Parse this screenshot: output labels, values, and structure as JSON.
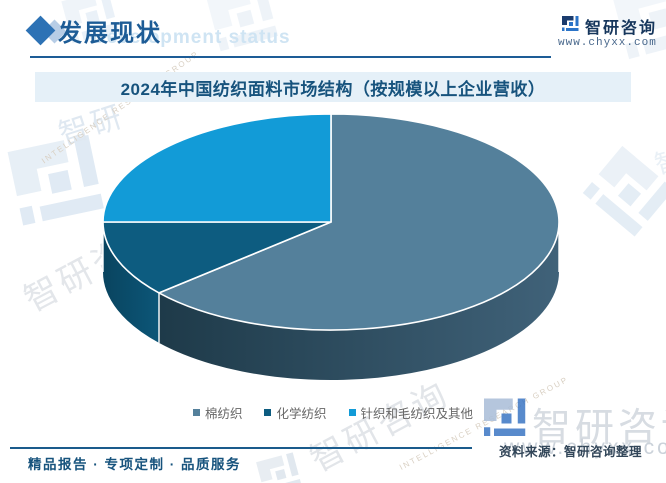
{
  "header": {
    "section_title": "发展现状",
    "logo_text": "智研咨询",
    "logo_site": "www.chyxx.com"
  },
  "chart_data": {
    "type": "pie",
    "projection": "3d",
    "title": "2024年中国纺织面料市场结构（按规模以上企业营收）",
    "labels": [
      "棉纺织",
      "化学纺织",
      "针织和毛纺织及其他"
    ],
    "values": [
      63.6,
      11.4,
      25.0
    ],
    "unit": "%",
    "start_angle": "12-oclock",
    "direction": "clockwise",
    "colors": [
      "#54809B",
      "#0D5C80",
      "#129BD7"
    ],
    "side_colors": [
      [
        "#1E3A49",
        "#406279"
      ],
      [
        "#09445F",
        "#0C5678"
      ],
      [
        "#0A6FA0",
        "#0A6FA0"
      ]
    ],
    "legend_position": "bottom",
    "data_labels_shown": false
  },
  "footer": {
    "slogan": "精品报告 · 专项定制 · 品质服务",
    "source": "资料来源：智研咨询整理"
  },
  "watermarks": {
    "header_en": "Development status",
    "brand_cn": "智研咨询",
    "brand_cn_short": "智研",
    "brand_char": "智",
    "brand_caption": "INTELLIGENCE RESEARCH GROUP",
    "brand_site": "www.chyxx.com"
  },
  "colors": {
    "accent_blue": "#1D5C96",
    "title_band_bg": "#E5F0F8",
    "title_text": "#17537D",
    "legend_text": "#666666",
    "source_text": "#324659",
    "logo_navy": "#1B3C6E",
    "logo_blue": "#2B74C8"
  }
}
